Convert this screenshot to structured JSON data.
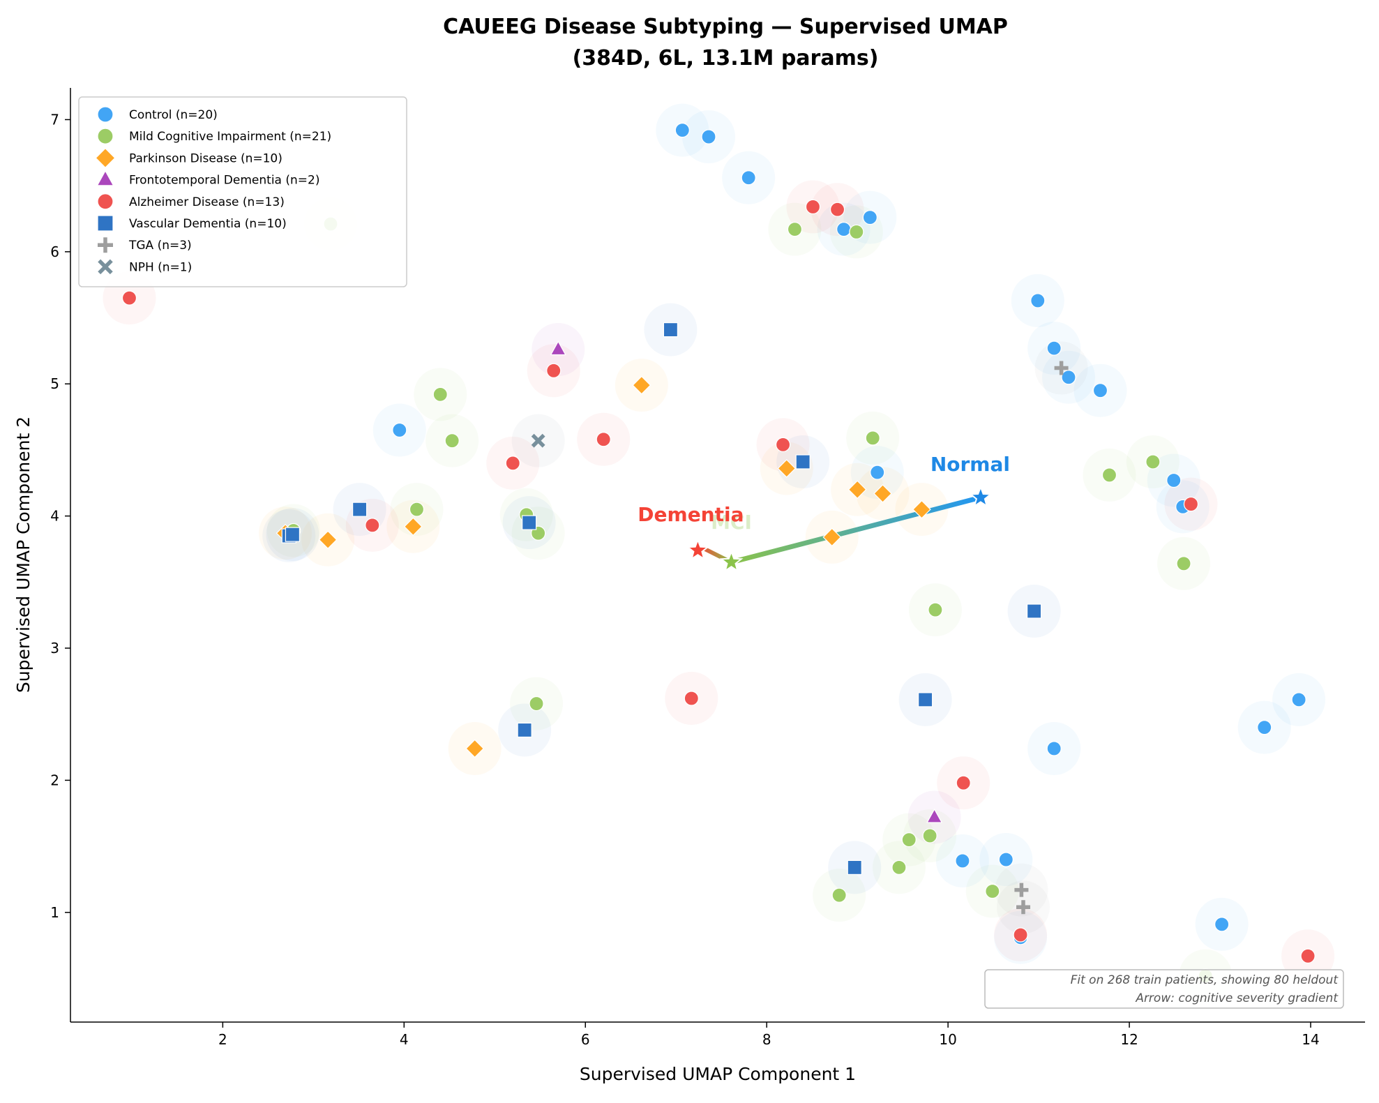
{
  "chart_data": {
    "type": "scatter",
    "title": "CAUEEG Disease Subtyping — Supervised UMAP",
    "subtitle": "(384D, 6L, 13.1M params)",
    "xlabel": "Supervised UMAP Component 1",
    "ylabel": "Supervised UMAP Component 2",
    "xlim": [
      0.32,
      14.6
    ],
    "ylim": [
      0.17,
      7.24
    ],
    "xticks": [
      2,
      4,
      6,
      8,
      10,
      12,
      14
    ],
    "yticks": [
      1,
      2,
      3,
      4,
      5,
      6,
      7
    ],
    "grid": false,
    "legend_position": "top-left",
    "series": [
      {
        "name": "Control (n=20)",
        "marker": "circle",
        "color": "#42A5F5",
        "points": [
          [
            7.07,
            6.92
          ],
          [
            7.36,
            6.87
          ],
          [
            7.8,
            6.56
          ],
          [
            9.14,
            6.26
          ],
          [
            8.85,
            6.17
          ],
          [
            10.99,
            5.63
          ],
          [
            11.17,
            5.27
          ],
          [
            11.33,
            5.05
          ],
          [
            11.68,
            4.95
          ],
          [
            3.95,
            4.65
          ],
          [
            9.22,
            4.33
          ],
          [
            12.49,
            4.27
          ],
          [
            12.59,
            4.07
          ],
          [
            13.87,
            2.61
          ],
          [
            13.49,
            2.4
          ],
          [
            11.17,
            2.24
          ],
          [
            10.16,
            1.39
          ],
          [
            10.64,
            1.4
          ],
          [
            13.02,
            0.91
          ],
          [
            10.8,
            0.81
          ]
        ]
      },
      {
        "name": "Mild Cognitive Impairment (n=21)",
        "marker": "circle",
        "color": "#9CCC65",
        "points": [
          [
            8.31,
            6.17
          ],
          [
            8.99,
            6.15
          ],
          [
            4.4,
            4.92
          ],
          [
            4.53,
            4.57
          ],
          [
            9.17,
            4.59
          ],
          [
            11.78,
            4.31
          ],
          [
            12.26,
            4.41
          ],
          [
            4.14,
            4.05
          ],
          [
            5.35,
            4.01
          ],
          [
            5.48,
            3.87
          ],
          [
            2.78,
            3.89
          ],
          [
            12.6,
            3.64
          ],
          [
            9.86,
            3.29
          ],
          [
            5.46,
            2.58
          ],
          [
            9.57,
            1.55
          ],
          [
            9.8,
            1.58
          ],
          [
            9.46,
            1.34
          ],
          [
            8.8,
            1.13
          ],
          [
            10.49,
            1.16
          ],
          [
            3.19,
            6.21
          ],
          [
            12.84,
            0.52
          ]
        ]
      },
      {
        "name": "Parkinson Disease (n=10)",
        "marker": "diamond",
        "color": "#FFA726",
        "points": [
          [
            6.62,
            4.99
          ],
          [
            8.22,
            4.36
          ],
          [
            9.0,
            4.2
          ],
          [
            9.28,
            4.17
          ],
          [
            9.71,
            4.05
          ],
          [
            8.72,
            3.84
          ],
          [
            4.1,
            3.92
          ],
          [
            3.16,
            3.82
          ],
          [
            2.69,
            3.87
          ],
          [
            4.78,
            2.24
          ]
        ]
      },
      {
        "name": "Frontotemporal Dementia (n=2)",
        "marker": "triangle",
        "color": "#AB47BC",
        "points": [
          [
            5.7,
            5.26
          ],
          [
            9.85,
            1.72
          ]
        ]
      },
      {
        "name": "Alzheimer Disease (n=13)",
        "marker": "circle",
        "color": "#EF5350",
        "points": [
          [
            0.97,
            5.65
          ],
          [
            8.51,
            6.34
          ],
          [
            8.78,
            6.32
          ],
          [
            5.65,
            5.1
          ],
          [
            6.2,
            4.58
          ],
          [
            5.2,
            4.4
          ],
          [
            8.18,
            4.54
          ],
          [
            3.65,
            3.93
          ],
          [
            12.68,
            4.09
          ],
          [
            7.17,
            2.62
          ],
          [
            10.17,
            1.98
          ],
          [
            10.8,
            0.83
          ],
          [
            13.97,
            0.67
          ]
        ]
      },
      {
        "name": "Vascular Dementia (n=10)",
        "marker": "square",
        "color": "#2F74C4",
        "points": [
          [
            6.94,
            5.41
          ],
          [
            8.4,
            4.41
          ],
          [
            3.51,
            4.05
          ],
          [
            5.38,
            3.95
          ],
          [
            2.73,
            3.85
          ],
          [
            2.77,
            3.86
          ],
          [
            10.95,
            3.28
          ],
          [
            9.75,
            2.61
          ],
          [
            5.33,
            2.38
          ],
          [
            8.97,
            1.34
          ]
        ]
      },
      {
        "name": "TGA (n=3)",
        "marker": "plus",
        "color": "#9E9E9E",
        "points": [
          [
            11.25,
            5.12
          ],
          [
            10.81,
            1.17
          ],
          [
            10.83,
            1.04
          ]
        ]
      },
      {
        "name": "NPH (n=1)",
        "marker": "x",
        "color": "#78909C",
        "points": [
          [
            5.48,
            4.57
          ]
        ]
      }
    ],
    "centroids": [
      {
        "label": "Normal",
        "x": 10.36,
        "y": 4.14,
        "color": "#1E88E5"
      },
      {
        "label": "MCI",
        "x": 7.61,
        "y": 3.65,
        "color": "#8BC34A"
      },
      {
        "label": "Dementia",
        "x": 7.24,
        "y": 3.74,
        "color": "#F44336"
      }
    ],
    "annotation": [
      "Fit on 268 train patients, showing 80 heldout",
      "Arrow: cognitive severity gradient"
    ]
  }
}
